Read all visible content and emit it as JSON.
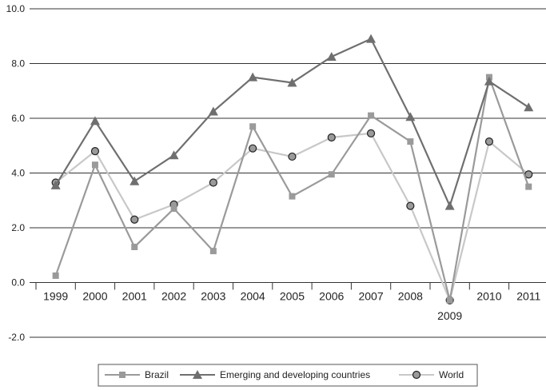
{
  "chart_data": {
    "type": "line",
    "title": "",
    "xlabel": "",
    "ylabel": "",
    "ylim": [
      -2,
      10
    ],
    "yticks": [
      "-2.0",
      "0.0",
      "2.0",
      "4.0",
      "6.0",
      "8.0",
      "10.0"
    ],
    "categories": [
      "1999",
      "2000",
      "2001",
      "2002",
      "2003",
      "2004",
      "2005",
      "2006",
      "2007",
      "2008",
      "2009",
      "2010",
      "2011"
    ],
    "grid": "horizontal",
    "legend_position": "bottom",
    "series": [
      {
        "name": "Brazil",
        "marker": "square",
        "color": "#9a9a9a",
        "values": [
          0.25,
          4.3,
          1.3,
          2.7,
          1.15,
          5.7,
          3.15,
          3.95,
          6.1,
          5.15,
          -0.65,
          7.5,
          3.5
        ]
      },
      {
        "name": "Emerging and developing countries",
        "marker": "triangle",
        "color": "#6f6f6f",
        "values": [
          3.55,
          5.9,
          3.7,
          4.65,
          6.25,
          7.5,
          7.3,
          8.25,
          8.9,
          6.05,
          2.8,
          7.35,
          6.4
        ]
      },
      {
        "name": "World",
        "marker": "circle",
        "color": "#c8c8c8",
        "values": [
          3.65,
          4.8,
          2.3,
          2.85,
          3.65,
          4.9,
          4.6,
          5.3,
          5.45,
          2.8,
          -0.65,
          5.15,
          3.95
        ]
      }
    ]
  }
}
